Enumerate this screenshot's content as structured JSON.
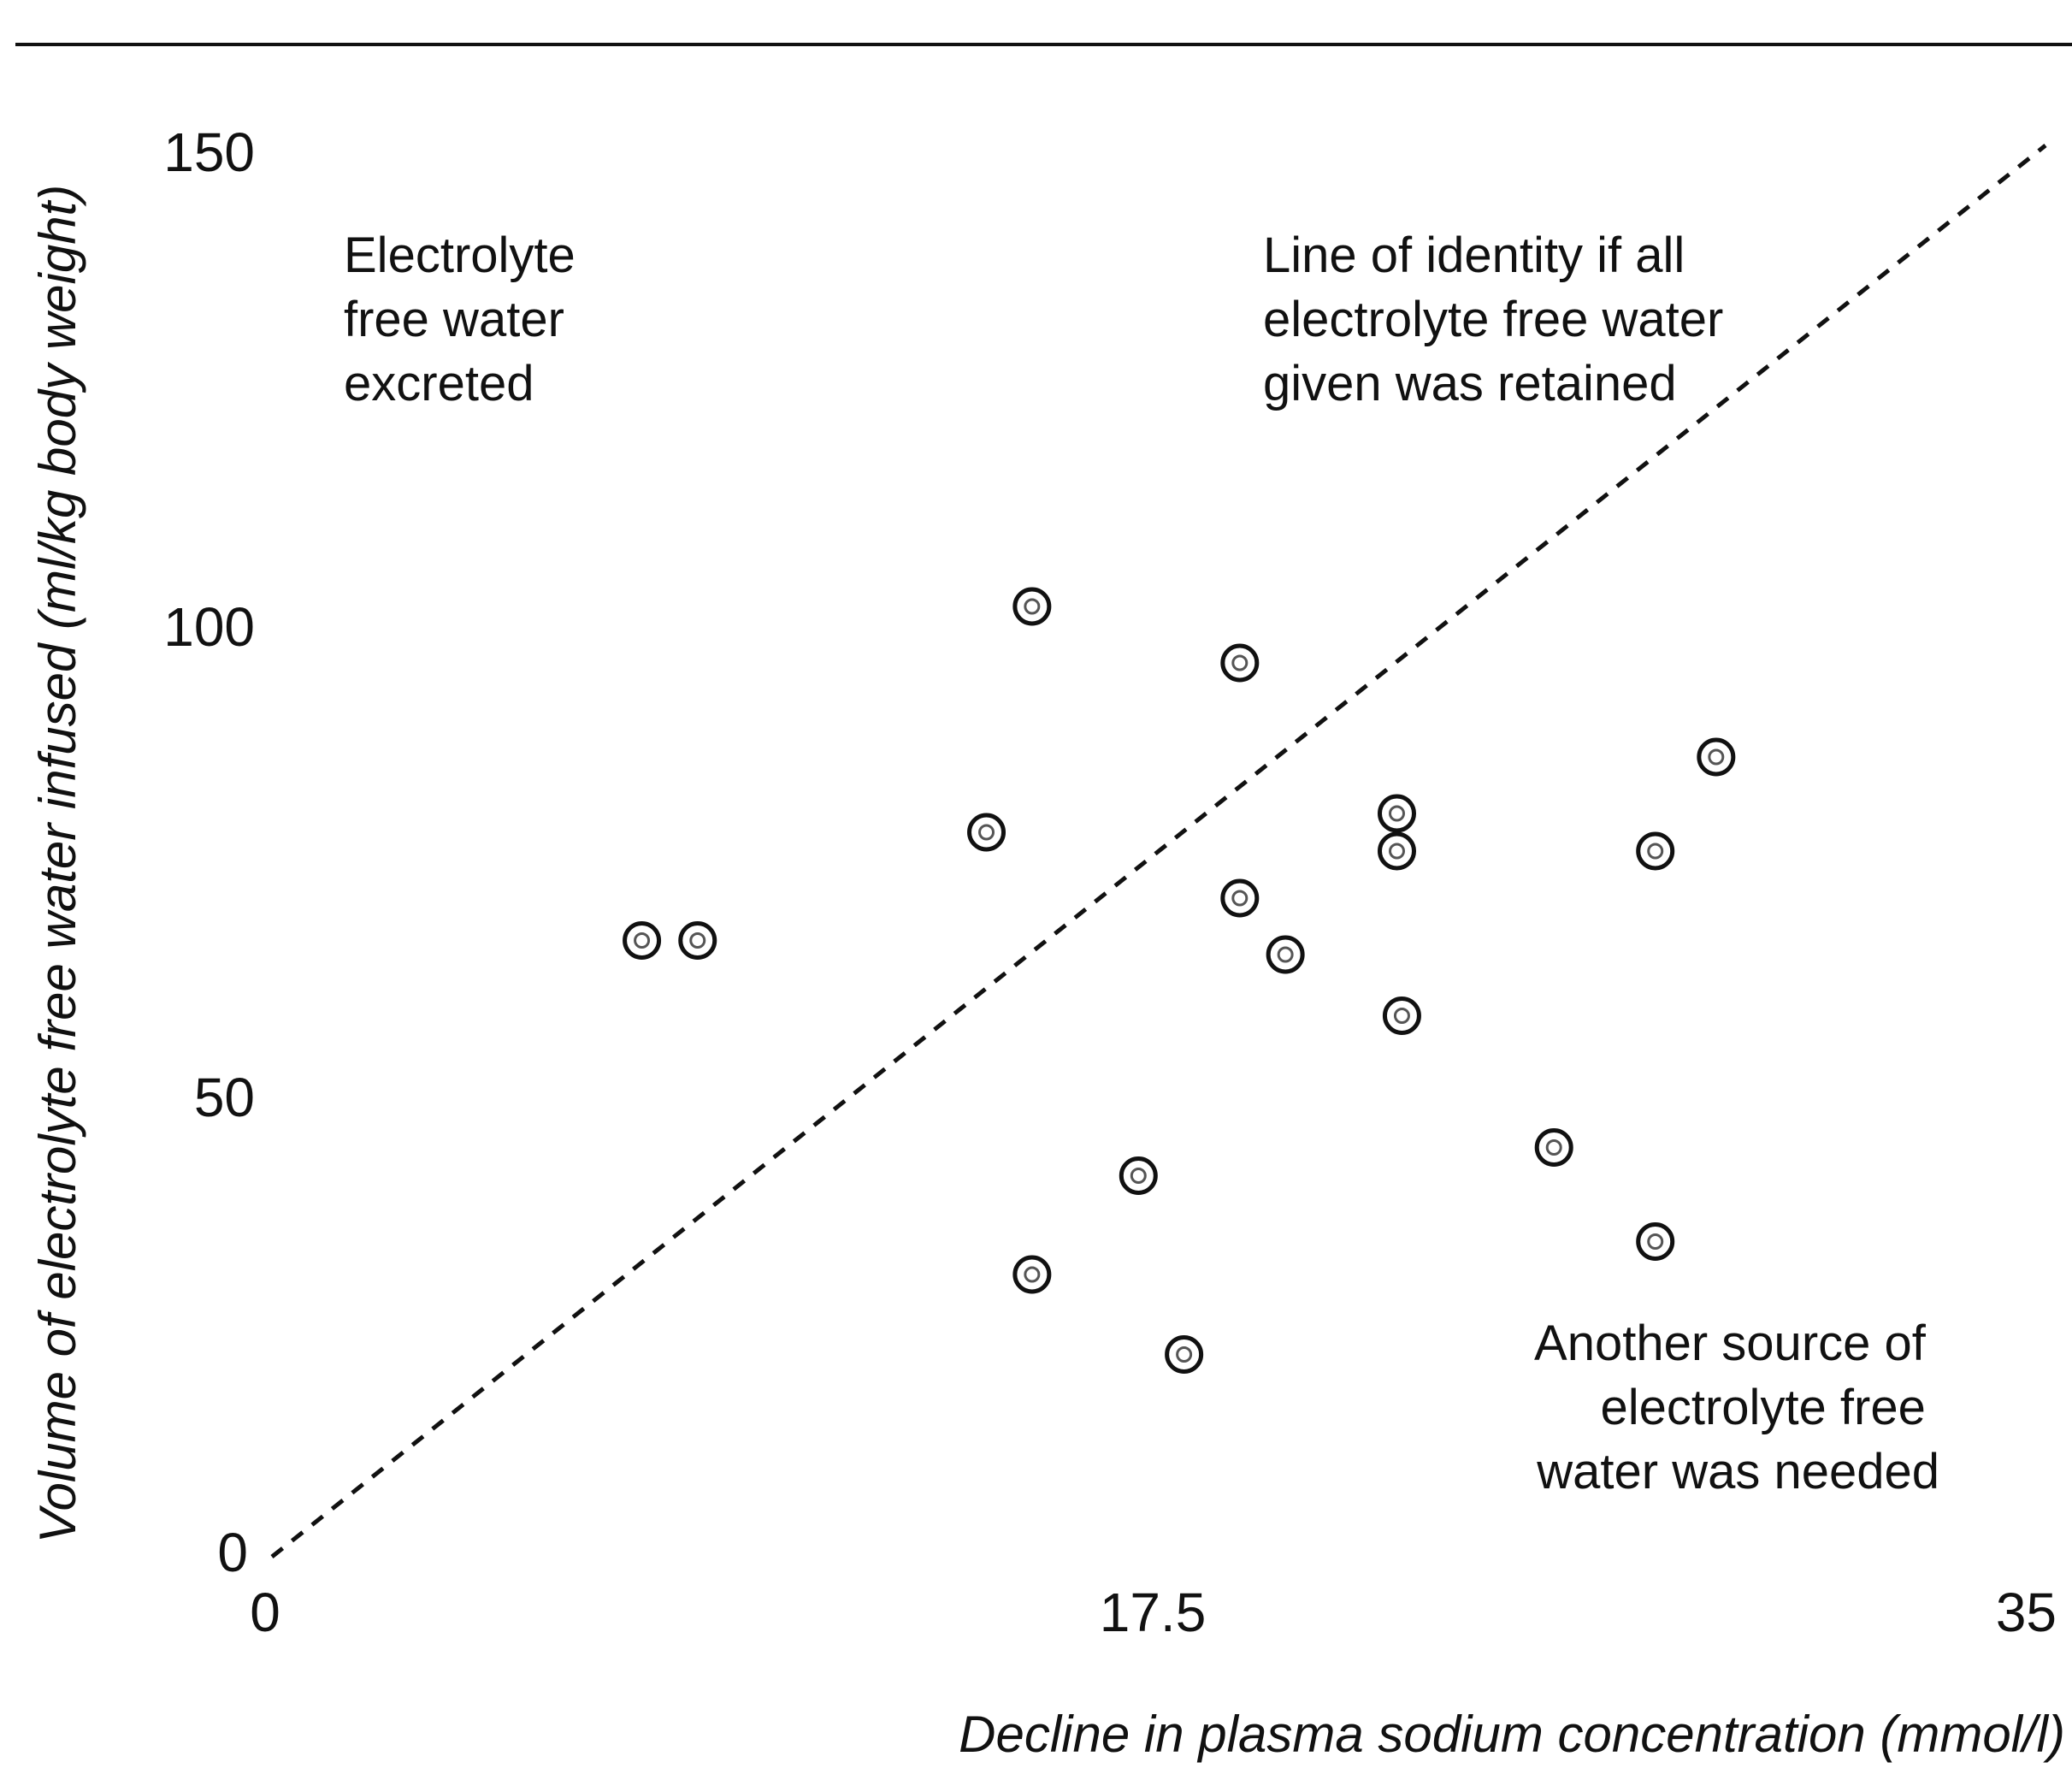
{
  "chart_data": {
    "type": "scatter",
    "title": "",
    "xlabel": "Decline in plasma sodium concentration (mmol/l)",
    "ylabel": "Volume of electrolyte free water infused (ml/kg body weight)",
    "xlim": [
      0,
      35
    ],
    "ylim": [
      0,
      150
    ],
    "xticks": [
      "0",
      "17.5",
      "35"
    ],
    "yticks": [
      "0",
      "50",
      "100",
      "150"
    ],
    "grid": false,
    "reference_line": {
      "label": "Line of identity if all electrolyte free water given was retained",
      "style": "dashed",
      "from": [
        0,
        0
      ],
      "to": [
        35,
        150
      ]
    },
    "annotations": [
      {
        "id": "excreted",
        "lines": [
          "Electrolyte",
          "free water",
          "excreted"
        ]
      },
      {
        "id": "identity",
        "lines": [
          "Line of identity if all",
          "electrolyte free water",
          "given was retained"
        ]
      },
      {
        "id": "needed",
        "lines": [
          "Another source of",
          "electrolyte free",
          "water was needed"
        ]
      }
    ],
    "points": [
      {
        "x": 7.3,
        "y": 65.5
      },
      {
        "x": 8.4,
        "y": 65.5
      },
      {
        "x": 14.1,
        "y": 77
      },
      {
        "x": 15.0,
        "y": 101
      },
      {
        "x": 15.0,
        "y": 30
      },
      {
        "x": 17.1,
        "y": 40.5
      },
      {
        "x": 18.0,
        "y": 21.5
      },
      {
        "x": 19.1,
        "y": 95
      },
      {
        "x": 19.1,
        "y": 70
      },
      {
        "x": 20.0,
        "y": 64
      },
      {
        "x": 22.2,
        "y": 79
      },
      {
        "x": 22.2,
        "y": 75
      },
      {
        "x": 22.3,
        "y": 57.5
      },
      {
        "x": 25.3,
        "y": 43.5
      },
      {
        "x": 27.3,
        "y": 75
      },
      {
        "x": 28.5,
        "y": 85
      },
      {
        "x": 27.3,
        "y": 33.5
      }
    ]
  }
}
